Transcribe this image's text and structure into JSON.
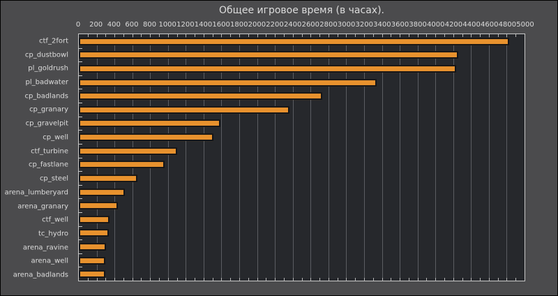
{
  "chart_data": {
    "type": "bar",
    "orientation": "horizontal",
    "title": "Общее игровое время (в часах).",
    "categories": [
      "ctf_2fort",
      "cp_dustbowl",
      "pl_goldrush",
      "pl_badwater",
      "cp_badlands",
      "cp_granary",
      "cp_gravelpit",
      "cp_well",
      "ctf_turbine",
      "cp_fastlane",
      "cp_steel",
      "arena_lumberyard",
      "arena_granary",
      "ctf_well",
      "tc_hydro",
      "arena_ravine",
      "arena_well",
      "arena_badlands"
    ],
    "values": [
      4830,
      4260,
      4230,
      3340,
      2730,
      2360,
      1590,
      1510,
      1105,
      960,
      660,
      520,
      435,
      345,
      335,
      305,
      300,
      300
    ],
    "xlabel": "",
    "ylabel": "",
    "xlim": [
      0,
      5000
    ],
    "x_ticks": [
      0,
      200,
      400,
      600,
      800,
      1000,
      1200,
      1400,
      1600,
      1800,
      2000,
      2200,
      2400,
      2600,
      2800,
      3000,
      3200,
      3400,
      3600,
      3800,
      4000,
      4200,
      4400,
      4600,
      4800,
      5000
    ],
    "grid_step": 200,
    "minor_tick_step": 100,
    "grid": "vertical gridlines every 200, on",
    "legend": "none"
  },
  "colors": {
    "outer_background": "#4B4B4D",
    "plot_background": "#26282C",
    "bar_fill": "#E8922E",
    "bar_edge": "#141518",
    "gridline": "#5B5D62",
    "axis_frame": "#C9C9C9",
    "text": "#DCDCDC",
    "figure_border": "#000000"
  }
}
